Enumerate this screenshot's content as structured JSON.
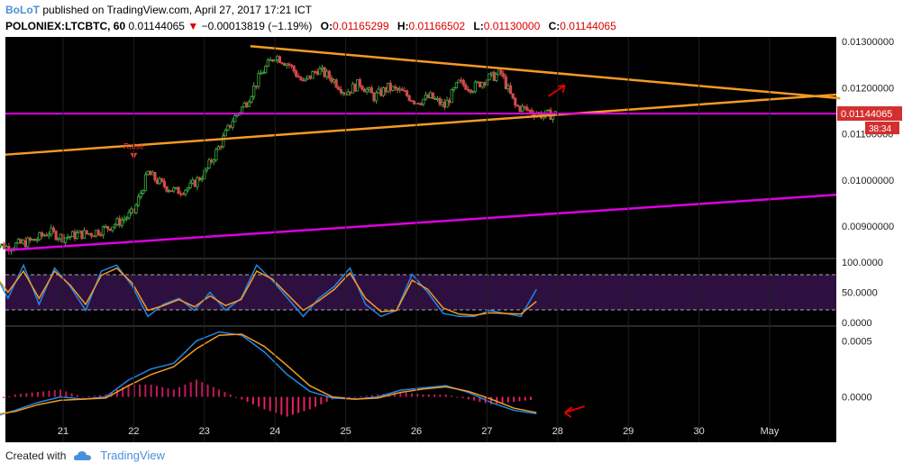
{
  "header": {
    "author": "BoLoT",
    "published": "published on TradingView.com, April 27, 2017 17:21 ICT",
    "symbol": "POLONIEX:LTCBTC, 60",
    "last": "0.01144065",
    "change": "−0.00013819 (−1.19%)",
    "open_label": "O:",
    "open": "0.01165299",
    "high_label": "H:",
    "high": "0.01166502",
    "low_label": "L:",
    "low": "0.01130000",
    "close_label": "C:",
    "close": "0.01144065"
  },
  "footer": {
    "created_with": "Created with",
    "brand": "TradingView"
  },
  "colors": {
    "bg": "#000000",
    "up": "#3cb043",
    "down": "#d24a4a",
    "orange": "#f59a23",
    "magenta": "#e000e0",
    "blue": "#1e88e5",
    "price_tag": "#d32f2f",
    "arrow": "#e00000",
    "stoch_band": "#3a1450"
  },
  "chart_data": [
    {
      "type": "candlestick",
      "pane": "price",
      "x_ticks": [
        "21",
        "22",
        "23",
        "24",
        "25",
        "26",
        "27",
        "28",
        "29",
        "30",
        "May"
      ],
      "y_ticks": [
        "0.01300000",
        "0.01200000",
        "0.01100000",
        "0.01000000",
        "0.00900000"
      ],
      "ylim": [
        0.0083,
        0.0131
      ],
      "price_label": "0.01144065",
      "countdown_label": "38:34",
      "annotation": "Raise",
      "candles": [
        {
          "x": 20.0,
          "c": 0.00865
        },
        {
          "x": 20.2,
          "c": 0.00855
        },
        {
          "x": 20.4,
          "c": 0.00862
        },
        {
          "x": 20.6,
          "c": 0.0087
        },
        {
          "x": 20.8,
          "c": 0.00888
        },
        {
          "x": 21.0,
          "c": 0.00875
        },
        {
          "x": 21.2,
          "c": 0.00882
        },
        {
          "x": 21.4,
          "c": 0.00885
        },
        {
          "x": 21.6,
          "c": 0.00895
        },
        {
          "x": 21.8,
          "c": 0.0091
        },
        {
          "x": 22.0,
          "c": 0.0093
        },
        {
          "x": 22.2,
          "c": 0.01015
        },
        {
          "x": 22.4,
          "c": 0.0099
        },
        {
          "x": 22.6,
          "c": 0.00975
        },
        {
          "x": 22.8,
          "c": 0.00985
        },
        {
          "x": 23.0,
          "c": 0.01015
        },
        {
          "x": 23.2,
          "c": 0.0107
        },
        {
          "x": 23.4,
          "c": 0.0113
        },
        {
          "x": 23.6,
          "c": 0.0117
        },
        {
          "x": 23.8,
          "c": 0.0123
        },
        {
          "x": 24.0,
          "c": 0.0127
        },
        {
          "x": 24.2,
          "c": 0.0125
        },
        {
          "x": 24.4,
          "c": 0.0121
        },
        {
          "x": 24.6,
          "c": 0.0124
        },
        {
          "x": 24.8,
          "c": 0.0122
        },
        {
          "x": 25.0,
          "c": 0.0119
        },
        {
          "x": 25.2,
          "c": 0.0121
        },
        {
          "x": 25.4,
          "c": 0.0118
        },
        {
          "x": 25.6,
          "c": 0.012
        },
        {
          "x": 25.8,
          "c": 0.0119
        },
        {
          "x": 26.0,
          "c": 0.0117
        },
        {
          "x": 26.2,
          "c": 0.0118
        },
        {
          "x": 26.4,
          "c": 0.0116
        },
        {
          "x": 26.6,
          "c": 0.0121
        },
        {
          "x": 26.8,
          "c": 0.012
        },
        {
          "x": 27.0,
          "c": 0.0122
        },
        {
          "x": 27.2,
          "c": 0.0123
        },
        {
          "x": 27.4,
          "c": 0.0116
        },
        {
          "x": 27.6,
          "c": 0.0115
        },
        {
          "x": 27.8,
          "c": 0.0114
        },
        {
          "x": 28.0,
          "c": 0.01144065
        }
      ]
    },
    {
      "type": "line",
      "pane": "stochastic",
      "y_ticks": [
        "100.0000",
        "50.0000",
        "0.0000"
      ],
      "ylim": [
        0,
        100
      ],
      "bands": [
        80,
        20
      ],
      "series": [
        {
          "color": "blue",
          "values": [
            90,
            40,
            95,
            30,
            90,
            60,
            20,
            85,
            95,
            60,
            10,
            30,
            40,
            20,
            50,
            20,
            40,
            95,
            70,
            40,
            10,
            40,
            60,
            90,
            30,
            10,
            20,
            80,
            50,
            15,
            10,
            10,
            20,
            15,
            10,
            55
          ]
        },
        {
          "color": "orange",
          "values": [
            85,
            50,
            85,
            40,
            85,
            62,
            30,
            78,
            90,
            65,
            20,
            28,
            38,
            26,
            44,
            28,
            38,
            85,
            72,
            46,
            20,
            36,
            55,
            82,
            40,
            18,
            20,
            70,
            55,
            24,
            14,
            12,
            16,
            15,
            14,
            35
          ]
        }
      ]
    },
    {
      "type": "line",
      "pane": "macd",
      "y_ticks": [
        "0.0005",
        "0.0000"
      ],
      "ylim": [
        -0.00022,
        0.0006
      ],
      "series": [
        {
          "color": "blue",
          "values": [
            -0.00018,
            -0.00012,
            -5e-05,
            0.0,
            -2e-05,
            0.0,
            0.00015,
            0.00025,
            0.0003,
            0.0005,
            0.00058,
            0.00055,
            0.0004,
            0.0002,
            5e-05,
            -1e-05,
            -2e-05,
            -0.0,
            6e-05,
            8e-05,
            0.0001,
            4e-05,
            -5e-05,
            -0.00012,
            -0.00015
          ]
        },
        {
          "color": "orange",
          "values": [
            -0.00016,
            -0.00013,
            -7e-05,
            -3e-05,
            -2e-05,
            -1e-05,
            0.0001,
            0.0002,
            0.00027,
            0.00043,
            0.00055,
            0.00056,
            0.00045,
            0.00028,
            0.0001,
            0.0,
            -2e-05,
            -1e-05,
            4e-05,
            7e-05,
            9e-05,
            5e-05,
            -2e-05,
            -0.0001,
            -0.00014
          ]
        }
      ]
    }
  ]
}
